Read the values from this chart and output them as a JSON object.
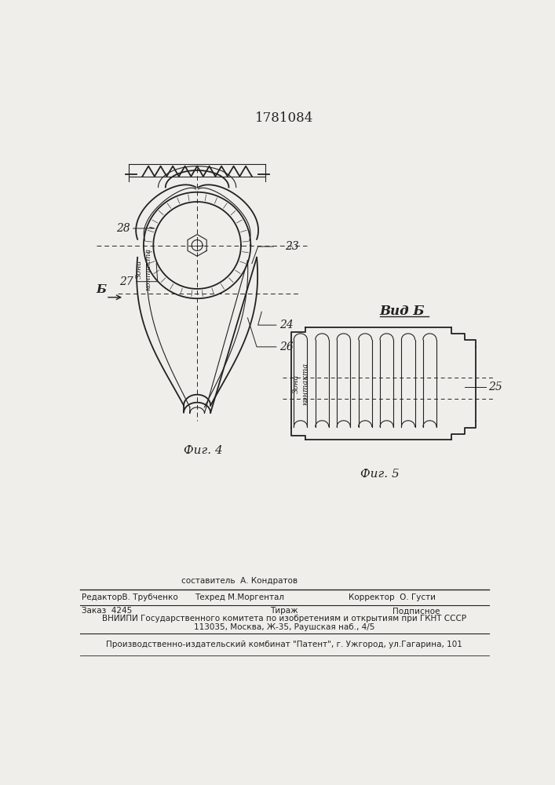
{
  "patent_number": "1781084",
  "fig4_label": "Фиг. 4",
  "fig5_label": "Фиг. 5",
  "vid_b_label": "Вид Б",
  "zona_kontakta": "Зона\nконтакта",
  "b_arrow": "Б",
  "label_23": "23",
  "label_24": "24",
  "label_25": "25",
  "label_26": "26",
  "label_27": "27",
  "label_28": "28",
  "sostavitel": "ставитель  А. Кондратов",
  "editor": "РедакторВ. Трубченко",
  "tekhred": "Техред М.Моргентал",
  "korrektor": "Корректор  О. Густи",
  "zakaz": "Заказ  4245",
  "tirazh": "Тираж",
  "podpisnoe": "Подписное",
  "vniiipi1": "ВНИИПИ Государственного комитета по изобретениям и открытиям при ГКНТ СССР",
  "vniiipi2": "113035, Москва, Ж-35, Раушская наб., 4/5",
  "proizv": "Производственно-издательский комбинат \"Патент\", г. Ужгород, ул.Гагарина, 101",
  "bg_color": "#f0eeea",
  "lc": "#222222"
}
